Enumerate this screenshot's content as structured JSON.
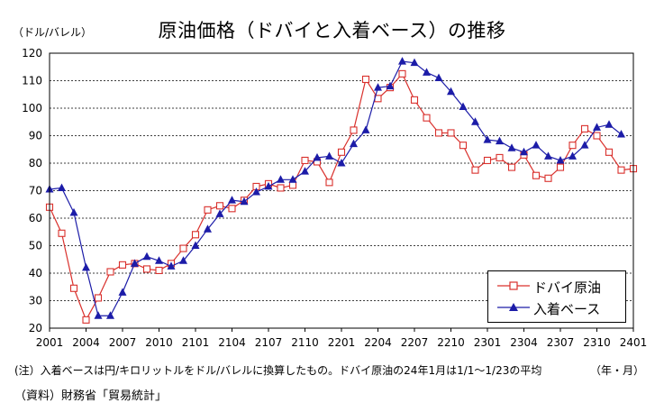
{
  "chart_data": {
    "type": "line",
    "title": "原油価格（ドバイと入着ベース）の推移",
    "ylabel": "（ドル/バレル）",
    "xlabel_unit": "（年・月）",
    "ylim": [
      20,
      120
    ],
    "yticks": [
      20,
      30,
      40,
      50,
      60,
      70,
      80,
      90,
      100,
      110,
      120
    ],
    "xtick_labels": [
      "2001",
      "2004",
      "2007",
      "2010",
      "2101",
      "2104",
      "2107",
      "2110",
      "2201",
      "2204",
      "2207",
      "2210",
      "2301",
      "2304",
      "2307",
      "2310",
      "2401"
    ],
    "grid": true,
    "legend": "bottom-right",
    "x": [
      "2001",
      "2002",
      "2003",
      "2004",
      "2005",
      "2006",
      "2007",
      "2008",
      "2009",
      "2010",
      "2011",
      "2012",
      "2101",
      "2102",
      "2103",
      "2104",
      "2105",
      "2106",
      "2107",
      "2108",
      "2109",
      "2110",
      "2111",
      "2112",
      "2201",
      "2202",
      "2203",
      "2204",
      "2205",
      "2206",
      "2207",
      "2208",
      "2209",
      "2210",
      "2211",
      "2212",
      "2301",
      "2302",
      "2303",
      "2304",
      "2305",
      "2306",
      "2307",
      "2308",
      "2309",
      "2310",
      "2311",
      "2312",
      "2401"
    ],
    "series": [
      {
        "name": "ドバイ原油",
        "color": "#d9302c",
        "marker": "square",
        "values": [
          64,
          54.5,
          34.5,
          23,
          31,
          40.5,
          43,
          43.5,
          41.5,
          41,
          43.5,
          49,
          54,
          63,
          64.5,
          63.5,
          66.5,
          71.5,
          72.5,
          71,
          72,
          81,
          80.5,
          73,
          84,
          92,
          110.5,
          103.5,
          107.5,
          112.5,
          103,
          96.5,
          91,
          91,
          86.5,
          77.5,
          81,
          82,
          78.5,
          83,
          75.5,
          74.5,
          78.5,
          86.5,
          92.5,
          90,
          84,
          77.5,
          78
        ]
      },
      {
        "name": "入着ベース",
        "color": "#1c1ca8",
        "marker": "triangle",
        "values": [
          70.5,
          71,
          62,
          42,
          24.5,
          24.5,
          33,
          43.5,
          46,
          44.5,
          42.5,
          44.5,
          50,
          56,
          61.5,
          66.5,
          66,
          69.5,
          71.5,
          74,
          74,
          77,
          82,
          82.5,
          80,
          87,
          92,
          107.5,
          108,
          117,
          116.5,
          113,
          111,
          106,
          100.5,
          95,
          88.5,
          88,
          85.5,
          84,
          86.5,
          82.5,
          81,
          82.5,
          86.5,
          93,
          94,
          90.5,
          null
        ]
      }
    ]
  },
  "notes": {
    "note": "(注）入着ベースは円/キロリットルをドル/バレルに換算したもの。ドバイ原油の24年1月は1/1～1/23の平均",
    "source": "（資料）財務省「貿易統計」"
  }
}
